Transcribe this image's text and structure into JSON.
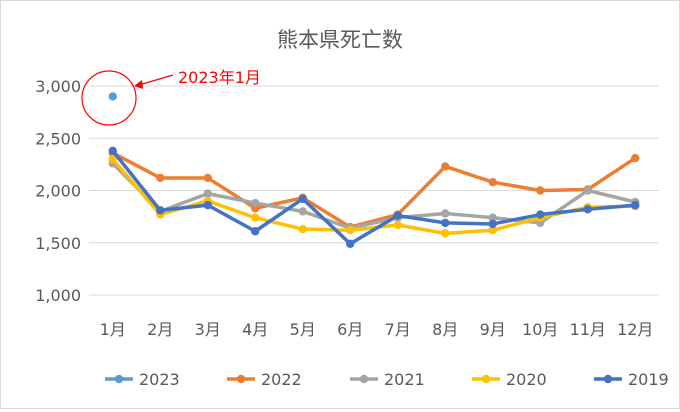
{
  "chart_data": {
    "type": "line",
    "title": "熊本県死亡数",
    "categories": [
      "1月",
      "2月",
      "3月",
      "4月",
      "5月",
      "6月",
      "7月",
      "8月",
      "9月",
      "10月",
      "11月",
      "12月"
    ],
    "yticks": [
      "1,000",
      "1,500",
      "2,000",
      "2,500",
      "3,000"
    ],
    "ylim": [
      1000,
      3000
    ],
    "grid": true,
    "legend_position": "bottom",
    "annotation": {
      "text": "2023年1月",
      "color": "#ff0000"
    },
    "series": [
      {
        "name": "2023",
        "color": "#5b9bd5",
        "values": [
          2900,
          null,
          null,
          null,
          null,
          null,
          null,
          null,
          null,
          null,
          null,
          null
        ]
      },
      {
        "name": "2022",
        "color": "#ed7d31",
        "values": [
          2360,
          2120,
          2120,
          1830,
          1930,
          1650,
          1770,
          2230,
          2080,
          2000,
          2010,
          2310
        ]
      },
      {
        "name": "2021",
        "color": "#a5a5a5",
        "values": [
          2260,
          1800,
          1970,
          1880,
          1800,
          1640,
          1740,
          1780,
          1740,
          1690,
          2000,
          1890
        ]
      },
      {
        "name": "2020",
        "color": "#ffc000",
        "values": [
          2300,
          1770,
          1900,
          1740,
          1630,
          1620,
          1670,
          1590,
          1620,
          1740,
          1840,
          1850
        ]
      },
      {
        "name": "2019",
        "color": "#4472c4",
        "values": [
          2380,
          1810,
          1860,
          1610,
          1920,
          1490,
          1760,
          1690,
          1680,
          1770,
          1820,
          1860
        ]
      }
    ]
  }
}
